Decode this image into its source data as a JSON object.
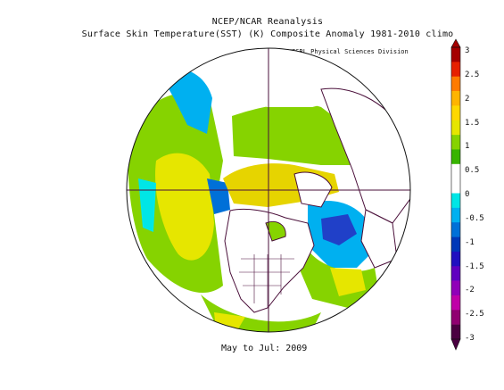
{
  "header": {
    "title_line1": "NCEP/NCAR Reanalysis",
    "title_line2": "Surface Skin Temperature(SST) (K) Composite Anomaly 1981-2010 climo",
    "credit": "NOAA/ESRL Physical Sciences Division"
  },
  "footer": {
    "period": "May to Jul: 2009"
  },
  "colorbar": {
    "ticks": [
      "3",
      "2.5",
      "2",
      "1.5",
      "1",
      "0.5",
      "0",
      "-0.5",
      "-1",
      "-1.5",
      "-2",
      "-2.5",
      "-3"
    ],
    "colors": [
      "#a50000",
      "#e62000",
      "#ff7b00",
      "#ffb400",
      "#ffd800",
      "#e6e600",
      "#86d300",
      "#38b400",
      "#ffffff",
      "#ffffff",
      "#00e6e6",
      "#00b0f0",
      "#0070d8",
      "#0038b8",
      "#2010c0",
      "#6000c0",
      "#9000b8",
      "#c000a8",
      "#900070",
      "#4a0040"
    ]
  },
  "legend_colors": {
    "land_outline": "#4a0f3a",
    "warm_anomaly": "#d4c800",
    "cool_anomaly": "#1f6fd8"
  }
}
